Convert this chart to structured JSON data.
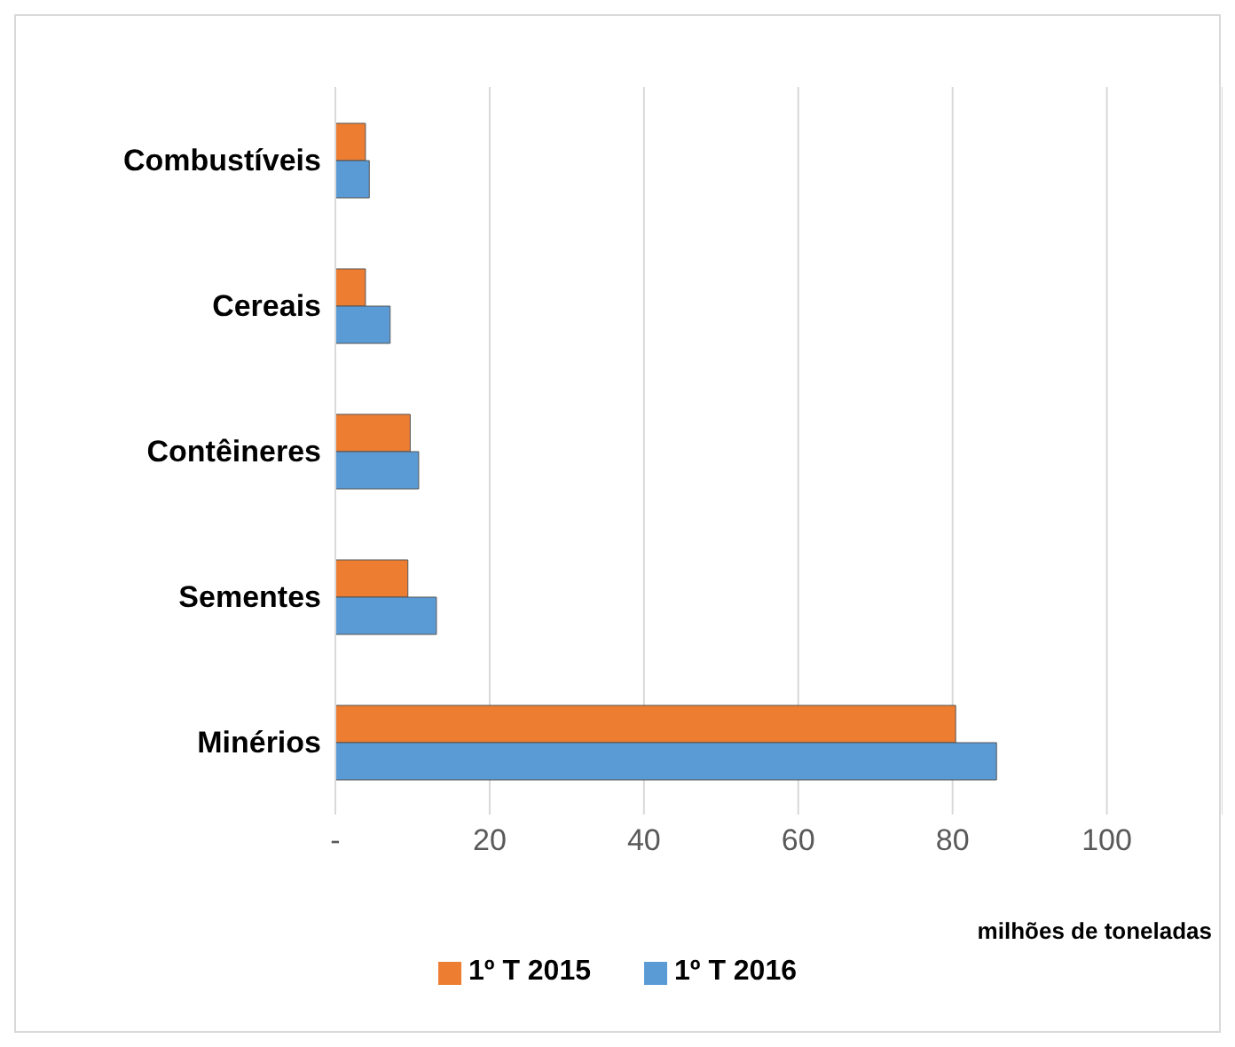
{
  "chart_data": {
    "type": "bar",
    "orientation": "horizontal",
    "categories": [
      "Combustíveis",
      "Cereais",
      "Contêineres",
      "Sementes",
      "Minérios"
    ],
    "series": [
      {
        "name": "1º T 2015",
        "color": "#ed7d31",
        "values": [
          3.9,
          3.9,
          9.7,
          9.4,
          80.4
        ]
      },
      {
        "name": "1º T 2016",
        "color": "#5b9bd5",
        "values": [
          4.4,
          7.1,
          10.8,
          13.1,
          85.7
        ]
      }
    ],
    "xlim": [
      0,
      115
    ],
    "xticks": [
      {
        "value": 0,
        "label": "-"
      },
      20,
      40,
      60,
      80,
      100
    ],
    "xlabel": "milhões de toneladas",
    "grid": "x",
    "legend": "bottom"
  }
}
